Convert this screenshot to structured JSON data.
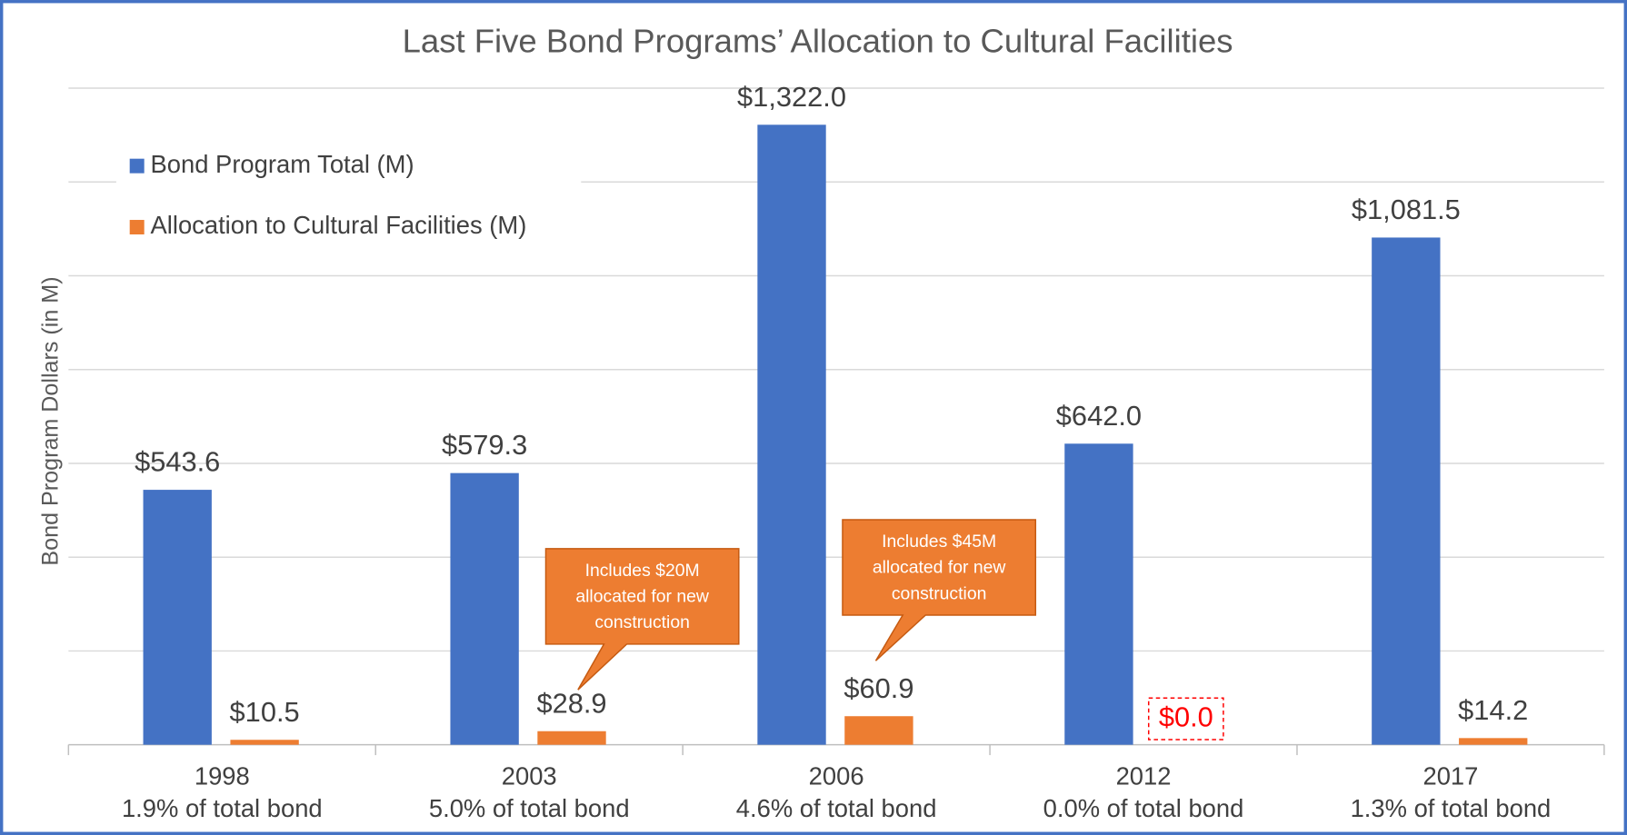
{
  "chart_data": {
    "type": "bar",
    "title": "Last Five Bond Programs’ Allocation to Cultural Facilities",
    "y_label": "Bond Program Dollars (in M)",
    "categories": [
      "1998",
      "2003",
      "2006",
      "2012",
      "2017"
    ],
    "category_sublabels": [
      "1.9% of total bond",
      "5.0% of total bond",
      "4.6% of total bond",
      "0.0% of total bond",
      "1.3% of total bond"
    ],
    "series": [
      {
        "name": "Bond Program Total (M)",
        "color": "#4472c4",
        "values": [
          543.6,
          579.3,
          1322.0,
          642.0,
          1081.5
        ],
        "value_labels": [
          "$543.6",
          "$579.3",
          "$1,322.0",
          "$642.0",
          "$1,081.5"
        ]
      },
      {
        "name": "Allocation to Cultural Facilities (M)",
        "color": "#ed7d31",
        "values": [
          10.5,
          28.9,
          60.9,
          0.0,
          14.2
        ],
        "value_labels": [
          "$10.5",
          "$28.9",
          "$60.9",
          "$0.0",
          "$14.2"
        ]
      }
    ],
    "highlight": {
      "series": 1,
      "index": 3,
      "color": "#ff0000"
    },
    "annotations": [
      {
        "lines": [
          "Includes $20M",
          "allocated for new",
          "construction"
        ],
        "color": "#ed7d31"
      },
      {
        "lines": [
          "Includes $45M",
          "allocated for new",
          "construction"
        ],
        "color": "#ed7d31"
      }
    ],
    "ylim": [
      0,
      1400
    ],
    "yticks": [
      0,
      200,
      400,
      600,
      800,
      1000,
      1200,
      1400
    ],
    "ytick_labels": false,
    "grid": true,
    "legend": "upper left"
  }
}
